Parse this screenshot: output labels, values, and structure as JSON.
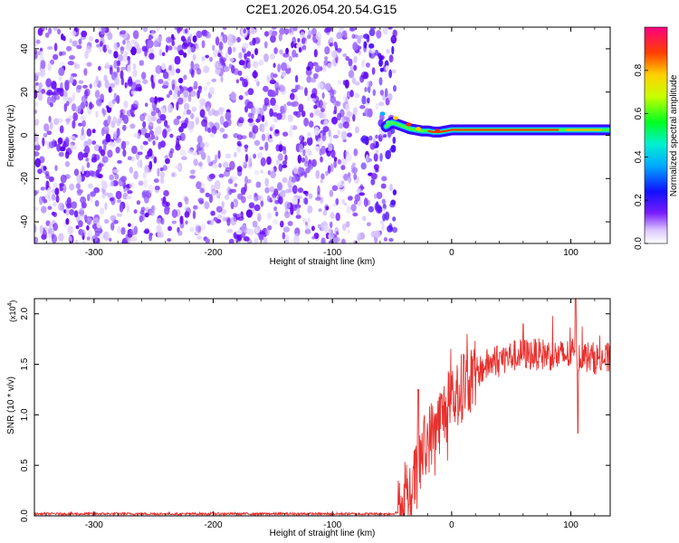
{
  "title": "C2E1.2026.054.20.54.G15",
  "chart_data": [
    {
      "type": "heatmap",
      "xlabel": "Height of straight line (km)",
      "ylabel": "Frequency (Hz)",
      "xlim": [
        -350,
        133
      ],
      "ylim": [
        -50,
        50
      ],
      "xticks": [
        -300,
        -200,
        -100,
        0,
        100
      ],
      "yticks": [
        -40,
        -20,
        0,
        20,
        40
      ],
      "noise_region_x": [
        -350,
        -52
      ],
      "signal_trace": {
        "x": [
          -55,
          -50,
          -45,
          -40,
          -35,
          -30,
          -25,
          -20,
          -15,
          -10,
          -5,
          0,
          10,
          20,
          30,
          40,
          50,
          60,
          70,
          80,
          90,
          100,
          110,
          120,
          133
        ],
        "frequency": [
          4,
          6,
          5,
          4,
          3,
          2.5,
          2,
          2,
          1.5,
          1.5,
          2,
          2.5,
          2.5,
          2.5,
          2.5,
          2.5,
          2.5,
          2.5,
          2.5,
          2.5,
          2.5,
          2.5,
          2.5,
          2.5,
          2.5
        ]
      },
      "colorbar": {
        "label": "Normalized spectral amplitude",
        "ticks": [
          0.0,
          0.2,
          0.4,
          0.6,
          0.8
        ],
        "range": [
          0,
          1
        ]
      }
    },
    {
      "type": "line",
      "xlabel": "Height of straight line (km)",
      "ylabel": "SNR (10 * v/v)",
      "scale_label": "(x10",
      "scale_exp": "4",
      "scale_close": ")",
      "xlim": [
        -350,
        133
      ],
      "ylim": [
        0,
        2.15
      ],
      "xticks": [
        -300,
        -200,
        -100,
        0,
        100
      ],
      "yticks": [
        "0.0",
        "0.5",
        "1.0",
        "1.5",
        "2.0"
      ],
      "color": "#e8312e",
      "envelope": {
        "x": [
          -350,
          -50,
          -40,
          -35,
          -30,
          -25,
          -20,
          -15,
          -10,
          -5,
          0,
          5,
          10,
          20,
          30,
          40,
          50,
          60,
          70,
          80,
          90,
          100,
          110,
          120,
          133
        ],
        "y": [
          0.02,
          0.02,
          0.05,
          0.15,
          0.4,
          0.6,
          0.75,
          0.85,
          0.95,
          1.05,
          1.1,
          1.2,
          1.3,
          1.4,
          1.5,
          1.55,
          1.58,
          1.6,
          1.6,
          1.6,
          1.58,
          1.6,
          1.58,
          1.56,
          1.55
        ]
      },
      "spikes": [
        {
          "x": -28,
          "y": 1.25
        },
        {
          "x": 10,
          "y": 1.6
        },
        {
          "x": 60,
          "y": 1.9
        },
        {
          "x": 104,
          "y": 2.15
        },
        {
          "x": 106,
          "y": 0.82
        }
      ]
    }
  ]
}
